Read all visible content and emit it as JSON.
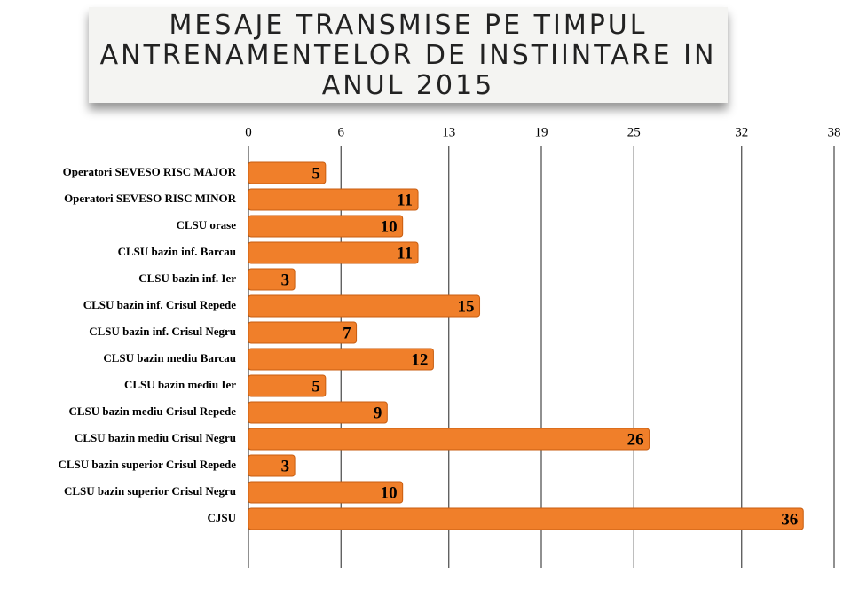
{
  "chart_data": {
    "type": "bar",
    "orientation": "horizontal",
    "title": "MESAJE TRANSMISE PE TIMPUL ANTRENAMENTELOR DE INSTIINTARE IN ANUL 2015",
    "categories": [
      "Operatori SEVESO RISC MAJOR",
      "Operatori SEVESO RISC MINOR",
      "CLSU orase",
      "CLSU bazin inf. Barcau",
      "CLSU bazin inf. Ier",
      "CLSU bazin inf. Crisul Repede",
      "CLSU bazin inf. Crisul Negru",
      "CLSU bazin mediu Barcau",
      "CLSU bazin mediu Ier",
      "CLSU bazin mediu Crisul Repede",
      "CLSU bazin mediu Crisul Negru",
      "CLSU bazin superior Crisul Repede",
      "CLSU bazin superior Crisul Negru",
      "CJSU"
    ],
    "values": [
      5,
      11,
      10,
      11,
      3,
      15,
      7,
      12,
      5,
      9,
      26,
      3,
      10,
      36
    ],
    "color": "#f07f2a",
    "xlim": [
      0,
      38
    ],
    "xticks": [
      0,
      6,
      13,
      19,
      25,
      32,
      38
    ],
    "grid": true
  }
}
